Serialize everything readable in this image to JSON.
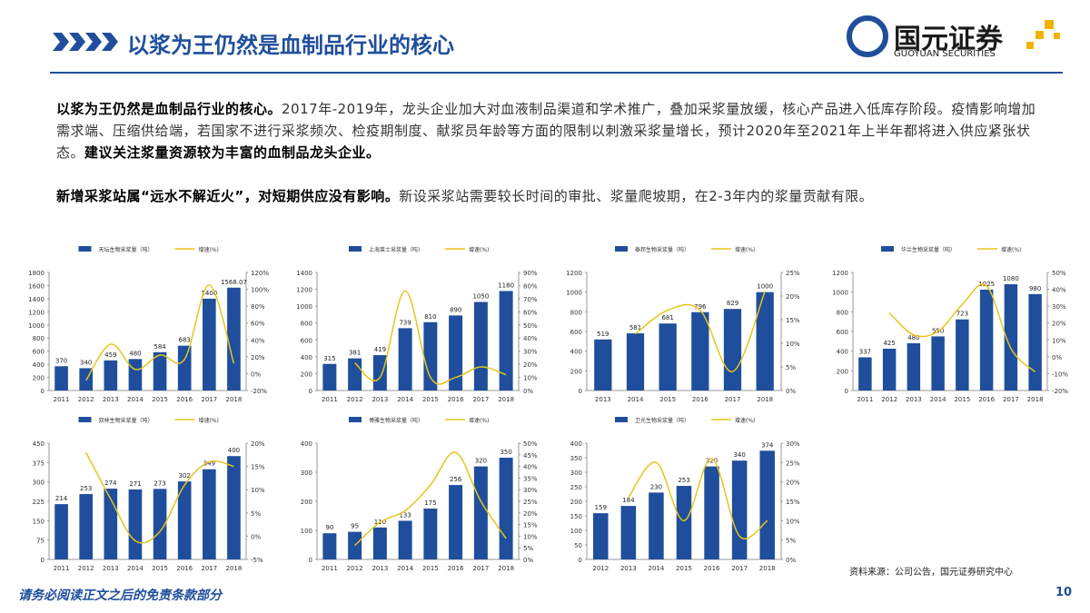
{
  "header": {
    "title": "以浆为王仍然是血制品行业的核心",
    "logo_cn": "国元证券",
    "logo_en": "GUOYUAN SECURITIES"
  },
  "paragraphs": [
    {
      "lead": "以浆为王仍然是血制品行业的核心。",
      "body": "2017年-2019年，龙头企业加大对血液制品渠道和学术推广，叠加采浆量放缓，核心产品进入低库存阶段。疫情影响增加需求端、压缩供给端，若国家不进行采浆频次、检疫期制度、献浆员年龄等方面的限制以刺激采浆量增长，预计2020年至2021年上半年都将进入供应紧张状态。",
      "tail": "建议关注浆量资源较为丰富的血制品龙头企业。"
    },
    {
      "lead": "新增采浆站属“远水不解近火”，对短期供应没有影响。",
      "body": "新设采浆站需要较长时间的审批、浆量爬坡期，在2-3年内的浆量贡献有限。"
    }
  ],
  "chart_data": [
    {
      "type": "bar-line",
      "categories": [
        "2011",
        "2012",
        "2013",
        "2014",
        "2015",
        "2016",
        "2017",
        "2018"
      ],
      "series": [
        {
          "name": "天坛生物采浆量（吨）",
          "color": "#1f4e9c",
          "values": [
            370,
            340,
            459,
            480,
            584,
            683,
            1400,
            1568.07
          ]
        },
        {
          "name": "增速(%)",
          "color": "#e8c51a",
          "axis": "y2",
          "values": [
            null,
            -8,
            35,
            5,
            22,
            17,
            105,
            12
          ]
        }
      ],
      "ylim": [
        0,
        1800
      ],
      "yticks": [
        0,
        200,
        400,
        600,
        800,
        1000,
        1200,
        1400,
        1600,
        1800
      ],
      "y2lim": [
        -20,
        120
      ],
      "y2ticks": [
        {
          "value": -20,
          "label": "-20%"
        },
        {
          "value": 0,
          "label": "0%"
        },
        {
          "value": 20,
          "label": "20%"
        },
        {
          "value": 40,
          "label": "40%"
        },
        {
          "value": 60,
          "label": "60%"
        },
        {
          "value": 80,
          "label": "80%"
        },
        {
          "value": 100,
          "label": "100%"
        },
        {
          "value": 120,
          "label": "120%"
        }
      ]
    },
    {
      "type": "bar-line",
      "categories": [
        "2011",
        "2012",
        "2013",
        "2014",
        "2015",
        "2016",
        "2017",
        "2018"
      ],
      "series": [
        {
          "name": "上海莱士采浆量（吨）",
          "color": "#1f4e9c",
          "values": [
            315,
            381,
            419,
            739,
            810,
            890,
            1050,
            1180
          ]
        },
        {
          "name": "增速(%)",
          "color": "#e8c51a",
          "axis": "y2",
          "values": [
            null,
            21,
            10,
            76,
            10,
            10,
            18,
            12
          ]
        }
      ],
      "ylim": [
        0,
        1400
      ],
      "yticks": [
        0,
        200,
        400,
        600,
        800,
        1000,
        1200,
        1400
      ],
      "y2lim": [
        0,
        90
      ],
      "y2ticks": [
        {
          "value": 0,
          "label": "0%"
        },
        {
          "value": 10,
          "label": "10%"
        },
        {
          "value": 20,
          "label": "20%"
        },
        {
          "value": 30,
          "label": "30%"
        },
        {
          "value": 40,
          "label": "40%"
        },
        {
          "value": 50,
          "label": "50%"
        },
        {
          "value": 60,
          "label": "60%"
        },
        {
          "value": 70,
          "label": "70%"
        },
        {
          "value": 80,
          "label": "80%"
        },
        {
          "value": 90,
          "label": "90%"
        }
      ]
    },
    {
      "type": "bar-line",
      "categories": [
        "2013",
        "2014",
        "2015",
        "2016",
        "2017",
        "2018"
      ],
      "series": [
        {
          "name": "泰邦生物采浆量（吨）",
          "color": "#1f4e9c",
          "values": [
            519,
            581,
            681,
            796,
            829,
            1000
          ]
        },
        {
          "name": "增速(%)",
          "color": "#e8c51a",
          "axis": "y2",
          "values": [
            null,
            12,
            17,
            17,
            4,
            21
          ]
        }
      ],
      "ylim": [
        0,
        1200
      ],
      "yticks": [
        0,
        200,
        400,
        600,
        800,
        1000,
        1200
      ],
      "y2lim": [
        0,
        25
      ],
      "y2ticks": [
        {
          "value": 0,
          "label": "0%"
        },
        {
          "value": 5,
          "label": "5%"
        },
        {
          "value": 10,
          "label": "10%"
        },
        {
          "value": 15,
          "label": "15%"
        },
        {
          "value": 20,
          "label": "20%"
        },
        {
          "value": 25,
          "label": "25%"
        }
      ]
    },
    {
      "type": "bar-line",
      "categories": [
        "2011",
        "2012",
        "2013",
        "2014",
        "2015",
        "2016",
        "2017",
        "2018"
      ],
      "series": [
        {
          "name": "华兰生物采浆量（吨）",
          "color": "#1f4e9c",
          "values": [
            337,
            425,
            480,
            550,
            723,
            1025,
            1080,
            980
          ]
        },
        {
          "name": "增速(%)",
          "color": "#e8c51a",
          "axis": "y2",
          "values": [
            null,
            26,
            13,
            15,
            31,
            42,
            5,
            -9
          ]
        }
      ],
      "ylim": [
        0,
        1200
      ],
      "yticks": [
        0,
        200,
        400,
        600,
        800,
        1000,
        1200
      ],
      "y2lim": [
        -20,
        50
      ],
      "y2ticks": [
        {
          "value": -20,
          "label": "-20%"
        },
        {
          "value": -10,
          "label": "-10%"
        },
        {
          "value": 0,
          "label": "0%"
        },
        {
          "value": 10,
          "label": "10%"
        },
        {
          "value": 20,
          "label": "20%"
        },
        {
          "value": 30,
          "label": "30%"
        },
        {
          "value": 40,
          "label": "40%"
        },
        {
          "value": 50,
          "label": "50%"
        }
      ]
    },
    {
      "type": "bar-line",
      "categories": [
        "2011",
        "2012",
        "2013",
        "2014",
        "2015",
        "2016",
        "2017",
        "2018"
      ],
      "series": [
        {
          "name": "双林生物采浆量（吨）",
          "color": "#1f4e9c",
          "values": [
            214,
            253,
            274,
            271,
            273,
            302,
            349,
            400
          ]
        },
        {
          "name": "增速(%)",
          "color": "#e8c51a",
          "axis": "y2",
          "values": [
            null,
            18,
            8,
            -1,
            1,
            11,
            16,
            15
          ]
        }
      ],
      "ylim": [
        0,
        450
      ],
      "yticks": [
        0,
        75,
        150,
        225,
        300,
        375,
        450
      ],
      "y2lim": [
        -5,
        20
      ],
      "y2ticks": [
        {
          "value": -5,
          "label": "-5%"
        },
        {
          "value": 0,
          "label": "0%"
        },
        {
          "value": 5,
          "label": "5%"
        },
        {
          "value": 10,
          "label": "10%"
        },
        {
          "value": 15,
          "label": "15%"
        },
        {
          "value": 20,
          "label": "20%"
        }
      ]
    },
    {
      "type": "bar-line",
      "categories": [
        "2011",
        "2012",
        "2013",
        "2014",
        "2015",
        "2016",
        "2017",
        "2018"
      ],
      "series": [
        {
          "name": "博雅生物采浆量（吨）",
          "color": "#1f4e9c",
          "values": [
            90,
            95,
            110,
            133,
            175,
            256,
            320,
            350
          ]
        },
        {
          "name": "增速(%)",
          "color": "#e8c51a",
          "axis": "y2",
          "values": [
            null,
            6,
            16,
            21,
            32,
            46,
            25,
            9
          ]
        }
      ],
      "ylim": [
        0,
        400
      ],
      "yticks": [
        0,
        100,
        200,
        300,
        400
      ],
      "y2lim": [
        0,
        50
      ],
      "y2ticks": [
        {
          "value": 0,
          "label": "0%"
        },
        {
          "value": 5,
          "label": "5%"
        },
        {
          "value": 10,
          "label": "10%"
        },
        {
          "value": 15,
          "label": "15%"
        },
        {
          "value": 20,
          "label": "20%"
        },
        {
          "value": 25,
          "label": "25%"
        },
        {
          "value": 30,
          "label": "30%"
        },
        {
          "value": 35,
          "label": "35%"
        },
        {
          "value": 40,
          "label": "40%"
        },
        {
          "value": 45,
          "label": "45%"
        },
        {
          "value": 50,
          "label": "50%"
        }
      ]
    },
    {
      "type": "bar-line",
      "categories": [
        "2012",
        "2013",
        "2014",
        "2015",
        "2016",
        "2017",
        "2018"
      ],
      "series": [
        {
          "name": "卫光生物采浆量（吨）",
          "color": "#1f4e9c",
          "values": [
            159,
            184,
            230,
            253,
            320,
            340,
            374
          ]
        },
        {
          "name": "增速(%)",
          "color": "#e8c51a",
          "axis": "y2",
          "values": [
            null,
            16,
            25,
            10,
            26,
            6,
            10
          ]
        }
      ],
      "ylim": [
        0,
        400
      ],
      "yticks": [
        0,
        50,
        100,
        150,
        200,
        250,
        300,
        350,
        400
      ],
      "y2lim": [
        0,
        30
      ],
      "y2ticks": [
        {
          "value": 0,
          "label": "0%"
        },
        {
          "value": 5,
          "label": "5%"
        },
        {
          "value": 10,
          "label": "10%"
        },
        {
          "value": 15,
          "label": "15%"
        },
        {
          "value": 20,
          "label": "20%"
        },
        {
          "value": 25,
          "label": "25%"
        },
        {
          "value": 30,
          "label": "30%"
        }
      ]
    }
  ],
  "source": "资料来源：公司公告，国元证券研究中心",
  "footer": "请务必阅读正文之后的免责条款部分",
  "page_number": "10"
}
